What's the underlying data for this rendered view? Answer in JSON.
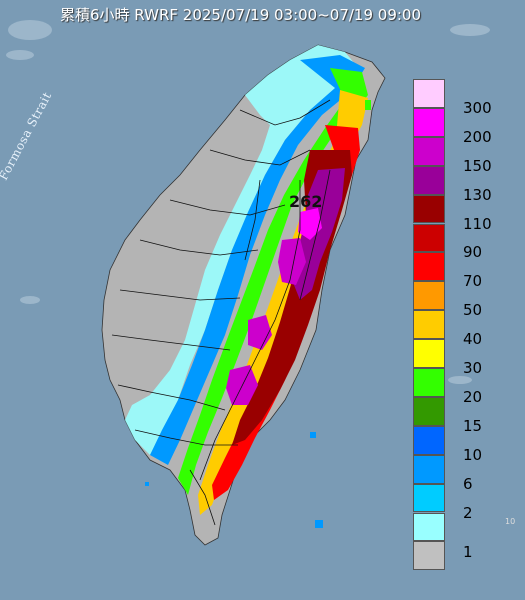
{
  "title": "累積6小時 RWRF 2025/07/19 03:00~07/19 09:00",
  "strait_label": "Formosa Strait",
  "max_value_label": "262",
  "edge_mark": "10",
  "legend": {
    "levels": [
      {
        "label": "300",
        "color": "#ffccff"
      },
      {
        "label": "200",
        "color": "#ff00ff"
      },
      {
        "label": "150",
        "color": "#cc00cc"
      },
      {
        "label": "130",
        "color": "#990099"
      },
      {
        "label": "110",
        "color": "#990000"
      },
      {
        "label": "90",
        "color": "#cc0000"
      },
      {
        "label": "70",
        "color": "#ff0000"
      },
      {
        "label": "50",
        "color": "#ff9900"
      },
      {
        "label": "40",
        "color": "#ffcc00"
      },
      {
        "label": "30",
        "color": "#ffff00"
      },
      {
        "label": "20",
        "color": "#33ff00"
      },
      {
        "label": "15",
        "color": "#339900"
      },
      {
        "label": "10",
        "color": "#0066ff"
      },
      {
        "label": "6",
        "color": "#0099ff"
      },
      {
        "label": "2",
        "color": "#00ccff"
      },
      {
        "label": "1",
        "color": "#99ffff"
      },
      {
        "label": "",
        "color": "#c0c0c0"
      }
    ]
  },
  "colors": {
    "sea": "#7a9bb5",
    "land_dry": "#b4b4b4",
    "boundary": "#000000"
  }
}
